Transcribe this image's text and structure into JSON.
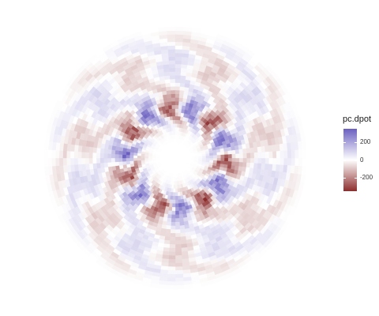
{
  "chart_data": {
    "type": "heatmap",
    "coordinate_system": "polar",
    "title": "",
    "xlabel": "",
    "ylabel": "",
    "fill_variable": "pc.dpot",
    "fill_scale": {
      "type": "diverging",
      "low_color": "#8c2d2d",
      "mid_color": "#ffffff",
      "high_color": "#6a5fc0",
      "midpoint": 0,
      "limits": [
        -350,
        350
      ]
    },
    "legend": {
      "title": "pc.dpot",
      "position": "right",
      "breaks": [
        200,
        0,
        -200
      ],
      "break_labels": [
        "200",
        "0",
        "-200"
      ]
    },
    "description_pattern": {
      "inner_ring_amplitude": 320,
      "outer_ring_amplitude": 90,
      "azimuthal_wavenumber": 7
    }
  }
}
